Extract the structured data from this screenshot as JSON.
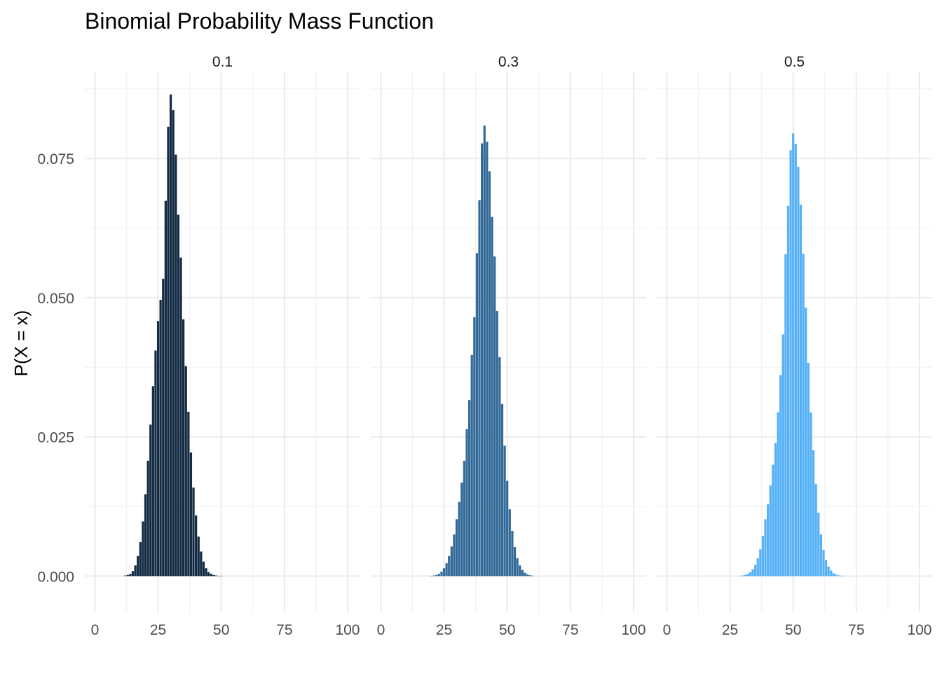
{
  "chart_data": {
    "type": "bar",
    "title": "Binomial Probability Mass Function",
    "xlabel": "",
    "ylabel": "P(X = x)",
    "xlim": [
      -4,
      105
    ],
    "ylim": [
      -0.0065,
      0.0905
    ],
    "x_ticks": [
      0,
      25,
      50,
      75,
      100
    ],
    "y_ticks": [
      0.0,
      0.025,
      0.05,
      0.075
    ],
    "y_tick_labels": [
      "0.000",
      "0.025",
      "0.050",
      "0.075"
    ],
    "grid": true,
    "legend": "none",
    "panels": [
      {
        "label": "0.1",
        "color": "#132b43",
        "x": [
          12,
          13,
          14,
          15,
          16,
          17,
          18,
          19,
          20,
          21,
          22,
          23,
          24,
          25,
          26,
          27,
          28,
          29,
          30,
          31,
          32,
          33,
          34,
          35,
          36,
          37,
          38,
          39,
          40,
          41,
          42,
          43,
          44,
          45,
          46,
          47,
          48,
          49,
          50
        ],
        "values": [
          0.0001,
          0.0002,
          0.0004,
          0.0009,
          0.0019,
          0.0036,
          0.0061,
          0.0098,
          0.0147,
          0.0207,
          0.0272,
          0.0341,
          0.0405,
          0.0458,
          0.0496,
          0.0534,
          0.0674,
          0.0807,
          0.0865,
          0.0837,
          0.0757,
          0.0649,
          0.0572,
          0.0461,
          0.0377,
          0.0295,
          0.0222,
          0.0159,
          0.0109,
          0.0071,
          0.0044,
          0.0026,
          0.0014,
          0.0007,
          0.0004,
          0.0002,
          0.0001,
          5e-05,
          2e-05
        ]
      },
      {
        "label": "0.3",
        "color": "#336a98",
        "x": [
          20,
          21,
          22,
          23,
          24,
          25,
          26,
          27,
          28,
          29,
          30,
          31,
          32,
          33,
          34,
          35,
          36,
          37,
          38,
          39,
          40,
          41,
          42,
          43,
          44,
          45,
          46,
          47,
          48,
          49,
          50,
          51,
          52,
          53,
          54,
          55,
          56,
          57,
          58,
          59,
          60
        ],
        "values": [
          5e-05,
          0.0001,
          0.0002,
          0.0004,
          0.0008,
          0.0014,
          0.0023,
          0.0036,
          0.0053,
          0.0075,
          0.0102,
          0.0133,
          0.0168,
          0.0207,
          0.0264,
          0.0316,
          0.0397,
          0.0465,
          0.058,
          0.0675,
          0.0777,
          0.0809,
          0.078,
          0.0727,
          0.0645,
          0.0574,
          0.0476,
          0.0393,
          0.0309,
          0.0234,
          0.0171,
          0.012,
          0.0081,
          0.0052,
          0.0032,
          0.0019,
          0.0011,
          0.0006,
          0.0003,
          0.00015,
          7e-05
        ]
      },
      {
        "label": "0.5",
        "color": "#56b1f7",
        "x": [
          29,
          30,
          31,
          32,
          33,
          34,
          35,
          36,
          37,
          38,
          39,
          40,
          41,
          42,
          43,
          44,
          45,
          46,
          47,
          48,
          49,
          50,
          51,
          52,
          53,
          54,
          55,
          56,
          57,
          58,
          59,
          60,
          61,
          62,
          63,
          64,
          65,
          66,
          67,
          68,
          69,
          70
        ],
        "values": [
          5e-05,
          0.0001,
          0.0002,
          0.0004,
          0.0007,
          0.0012,
          0.002,
          0.0032,
          0.0048,
          0.0072,
          0.0102,
          0.0129,
          0.0163,
          0.02,
          0.0239,
          0.0294,
          0.0361,
          0.0434,
          0.0578,
          0.0665,
          0.0765,
          0.0795,
          0.0776,
          0.0735,
          0.0667,
          0.0579,
          0.0482,
          0.0383,
          0.0294,
          0.0226,
          0.0165,
          0.0114,
          0.0075,
          0.0047,
          0.0029,
          0.0017,
          0.001,
          0.0005,
          0.00025,
          0.00012,
          6e-05,
          3e-05
        ]
      }
    ]
  }
}
